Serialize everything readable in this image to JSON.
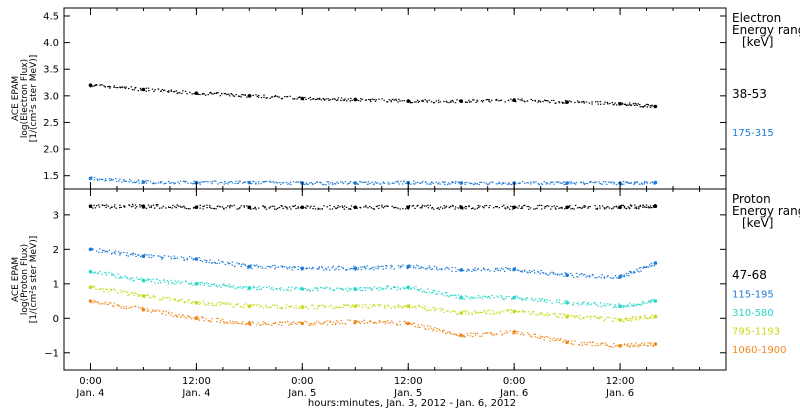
{
  "chart_data": [
    {
      "type": "scatter",
      "ylabel_lines": [
        "ACE EPAM",
        "log(Electron Flux)",
        "[1/(cm²s ster MeV)]"
      ],
      "ylim": [
        1.25,
        4.65
      ],
      "yticks": [
        1.5,
        2.0,
        2.5,
        3.0,
        3.5,
        4.0,
        4.5
      ],
      "ytick_labels": [
        "1.5",
        "2.0",
        "2.5",
        "3.0",
        "3.5",
        "4.0",
        "4.5"
      ],
      "legend_title_lines": [
        "Electron",
        "Energy ranges",
        "[keV]"
      ],
      "series": [
        {
          "name": "38-53",
          "color": "#000000",
          "x_hours": [
            0,
            6,
            12,
            18,
            24,
            30,
            36,
            42,
            48,
            54,
            60,
            64
          ],
          "y": [
            3.2,
            3.12,
            3.05,
            3.0,
            2.95,
            2.93,
            2.9,
            2.9,
            2.92,
            2.88,
            2.85,
            2.8
          ]
        },
        {
          "name": "175-315",
          "color": "#1f7bd6",
          "x_hours": [
            0,
            6,
            12,
            18,
            24,
            30,
            36,
            42,
            48,
            54,
            60,
            64
          ],
          "y": [
            1.45,
            1.38,
            1.37,
            1.37,
            1.36,
            1.36,
            1.37,
            1.36,
            1.36,
            1.36,
            1.36,
            1.37
          ]
        }
      ]
    },
    {
      "type": "scatter",
      "ylabel_lines": [
        "ACE EPAM",
        "log(Proton Flux)",
        "[1/(cm²s ster MeV)]"
      ],
      "ylim": [
        -1.5,
        3.75
      ],
      "yticks": [
        -1,
        0,
        1,
        2,
        3
      ],
      "ytick_labels": [
        "−1",
        "0",
        "1",
        "2",
        "3"
      ],
      "legend_title_lines": [
        "Proton",
        "Energy ranges",
        "[keV]"
      ],
      "series": [
        {
          "name": "47-68",
          "color": "#000000",
          "x_hours": [
            0,
            6,
            12,
            18,
            24,
            30,
            36,
            42,
            48,
            54,
            60,
            64
          ],
          "y": [
            3.25,
            3.25,
            3.22,
            3.22,
            3.22,
            3.22,
            3.22,
            3.22,
            3.22,
            3.22,
            3.22,
            3.25
          ]
        },
        {
          "name": "115-195",
          "color": "#1f7bd6",
          "x_hours": [
            0,
            6,
            12,
            18,
            24,
            30,
            36,
            42,
            48,
            54,
            60,
            64
          ],
          "y": [
            2.0,
            1.8,
            1.72,
            1.5,
            1.45,
            1.45,
            1.5,
            1.4,
            1.42,
            1.25,
            1.2,
            1.6
          ]
        },
        {
          "name": "310-580",
          "color": "#27d6c8",
          "x_hours": [
            0,
            6,
            12,
            18,
            24,
            30,
            36,
            42,
            48,
            54,
            60,
            64
          ],
          "y": [
            1.35,
            1.1,
            1.0,
            0.88,
            0.85,
            0.85,
            0.9,
            0.6,
            0.6,
            0.45,
            0.35,
            0.5
          ]
        },
        {
          "name": "795-1193",
          "color": "#c8d91a",
          "x_hours": [
            0,
            6,
            12,
            18,
            24,
            30,
            36,
            42,
            48,
            54,
            60,
            64
          ],
          "y": [
            0.9,
            0.65,
            0.45,
            0.35,
            0.32,
            0.35,
            0.35,
            0.15,
            0.2,
            0.05,
            -0.05,
            0.05
          ]
        },
        {
          "name": "1060-1900",
          "color": "#f08a1e",
          "x_hours": [
            0,
            6,
            12,
            18,
            24,
            30,
            36,
            42,
            48,
            54,
            60,
            64
          ],
          "y": [
            0.5,
            0.25,
            0.0,
            -0.15,
            -0.15,
            -0.1,
            -0.15,
            -0.5,
            -0.4,
            -0.7,
            -0.8,
            -0.75
          ]
        }
      ]
    }
  ],
  "xaxis": {
    "xlim_hours": [
      -3,
      72
    ],
    "ticks": [
      {
        "hours": 0,
        "time": "0:00",
        "date": "Jan. 4"
      },
      {
        "hours": 12,
        "time": "12:00",
        "date": "Jan. 4"
      },
      {
        "hours": 24,
        "time": "0:00",
        "date": "Jan. 5"
      },
      {
        "hours": 36,
        "time": "12:00",
        "date": "Jan. 5"
      },
      {
        "hours": 48,
        "time": "0:00",
        "date": "Jan. 6"
      },
      {
        "hours": 60,
        "time": "12:00",
        "date": "Jan. 6"
      }
    ],
    "label": "hours:minutes, Jan.  3, 2012 - Jan.  6, 2012"
  }
}
